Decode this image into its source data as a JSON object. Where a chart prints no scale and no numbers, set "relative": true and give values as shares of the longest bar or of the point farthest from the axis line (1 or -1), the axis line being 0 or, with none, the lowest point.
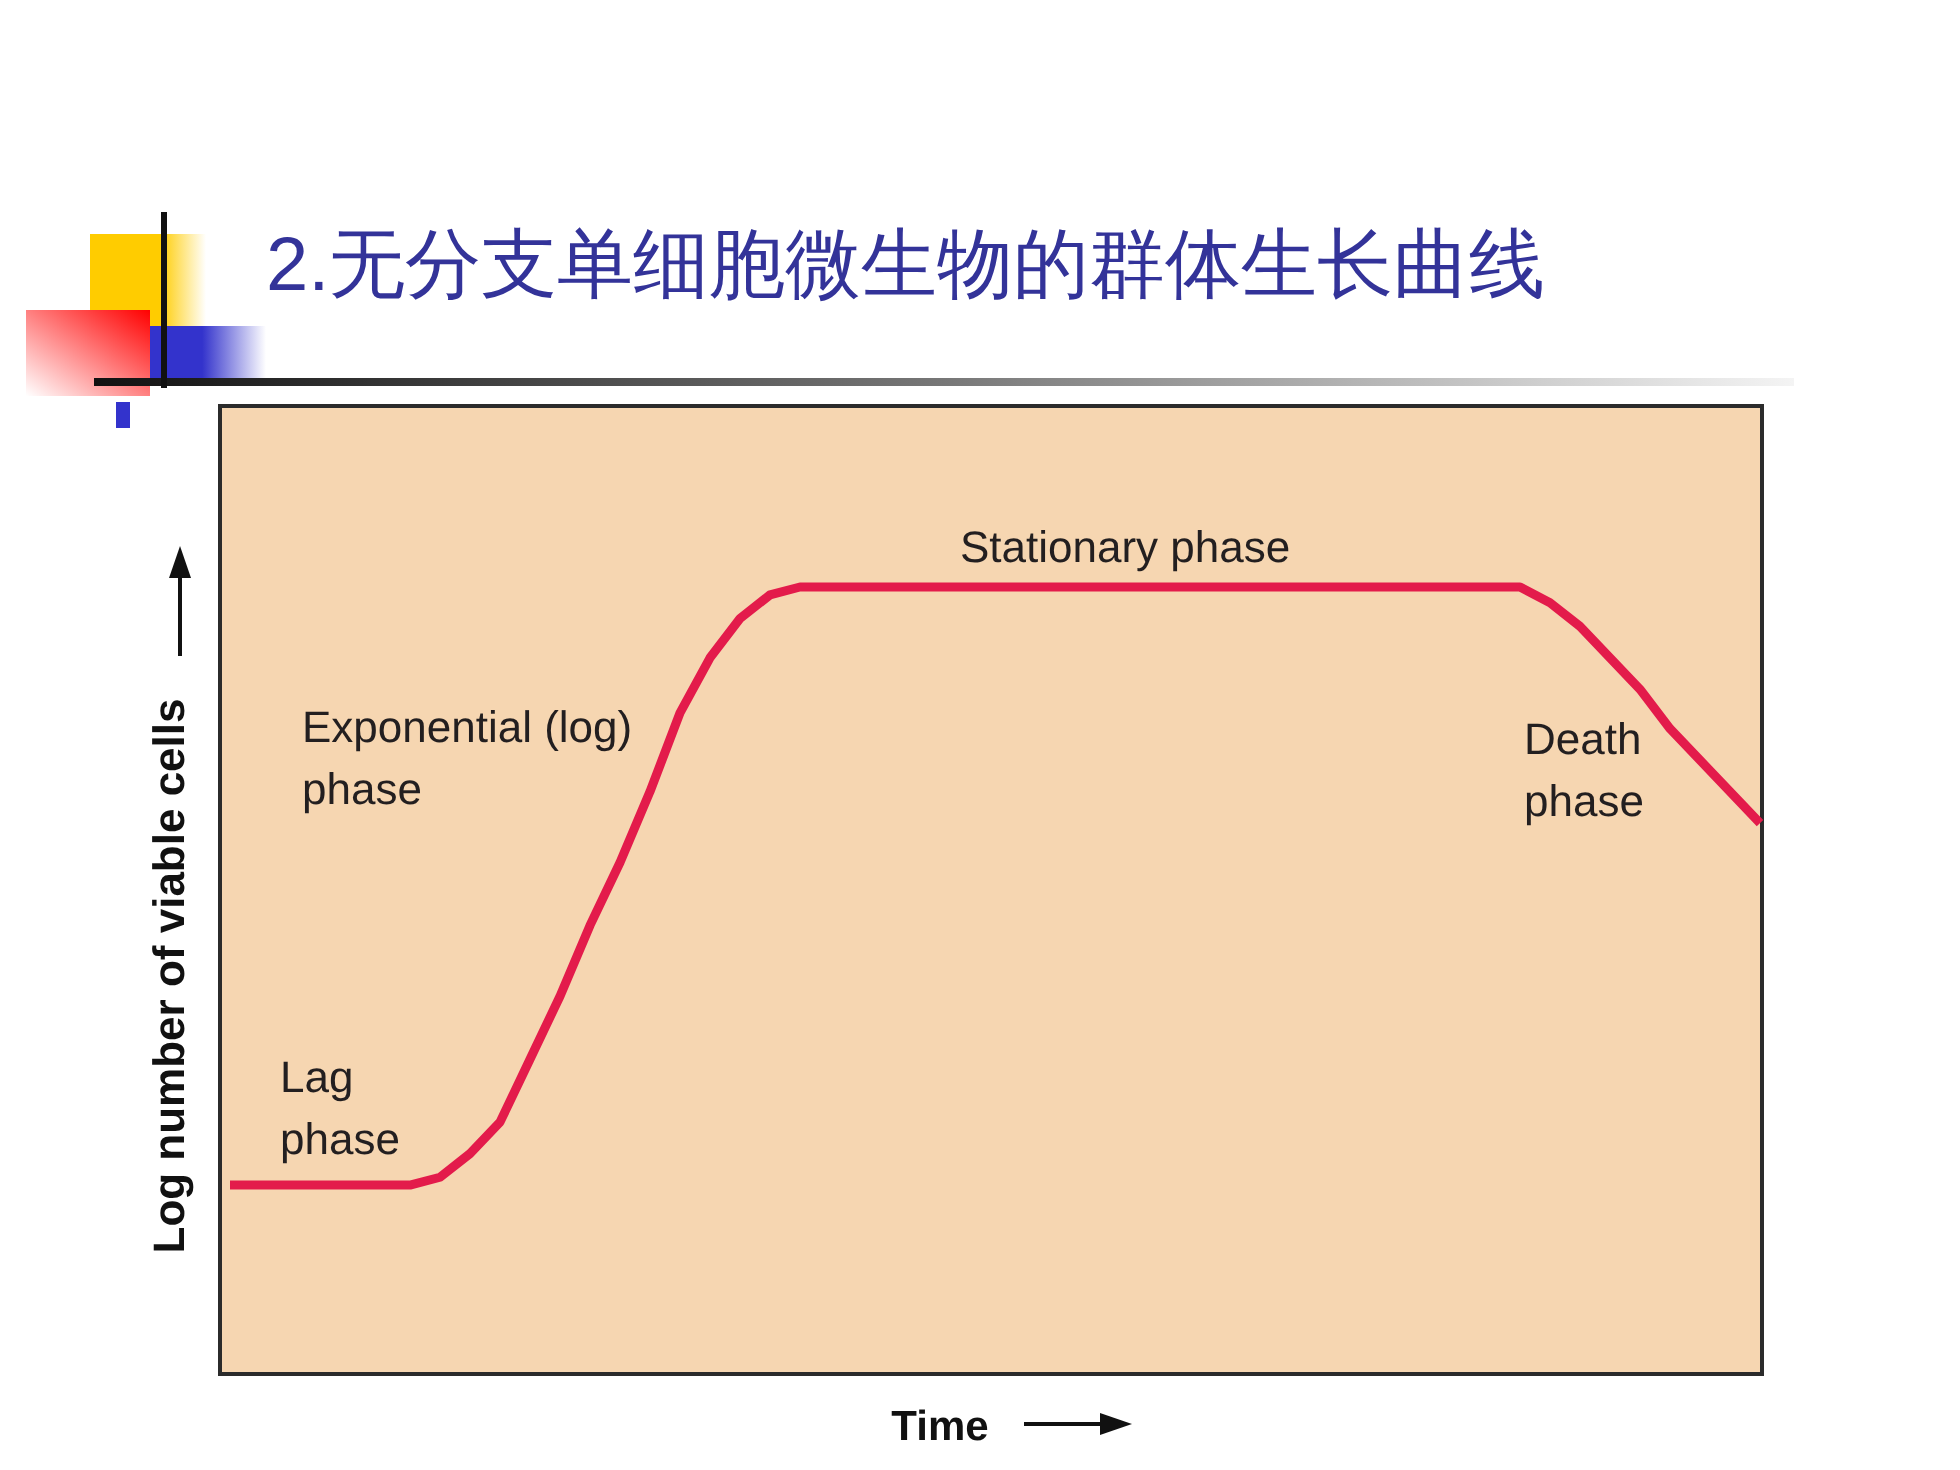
{
  "chart_data": {
    "type": "line",
    "title": "2.无分支单细胞微生物的群体生长曲线",
    "xlabel": "Time",
    "ylabel": "Log number of viable cells",
    "relative": true,
    "color": "#e31b4b",
    "categories": [
      null,
      null,
      null,
      null,
      null,
      null,
      null,
      null,
      null,
      null,
      null,
      null,
      null,
      null,
      null,
      null,
      null,
      null,
      null,
      null,
      null,
      null,
      null,
      null,
      null,
      null,
      null,
      null,
      null,
      null,
      null,
      null,
      null,
      null,
      null,
      null,
      null,
      null,
      null,
      null,
      null,
      null,
      null,
      null,
      null,
      null,
      null,
      null,
      null,
      null,
      null,
      null
    ],
    "values": [
      0.24,
      0.24,
      0.24,
      0.24,
      0.24,
      0.24,
      0.24,
      0.25,
      0.28,
      0.32,
      0.4,
      0.48,
      0.57,
      0.65,
      0.74,
      0.84,
      0.91,
      0.96,
      0.99,
      1,
      1,
      1,
      1,
      1,
      1,
      1,
      1,
      1,
      1,
      1,
      1,
      1,
      1,
      1,
      1,
      1,
      1,
      1,
      1,
      1,
      1,
      1,
      1,
      1,
      0.98,
      0.95,
      0.91,
      0.87,
      0.82,
      0.78,
      0.74,
      0.7
    ],
    "annotations": [
      "Stationary phase",
      "Exponential (log)\nphase",
      "Death\nphase",
      "Lag\nphase"
    ]
  }
}
